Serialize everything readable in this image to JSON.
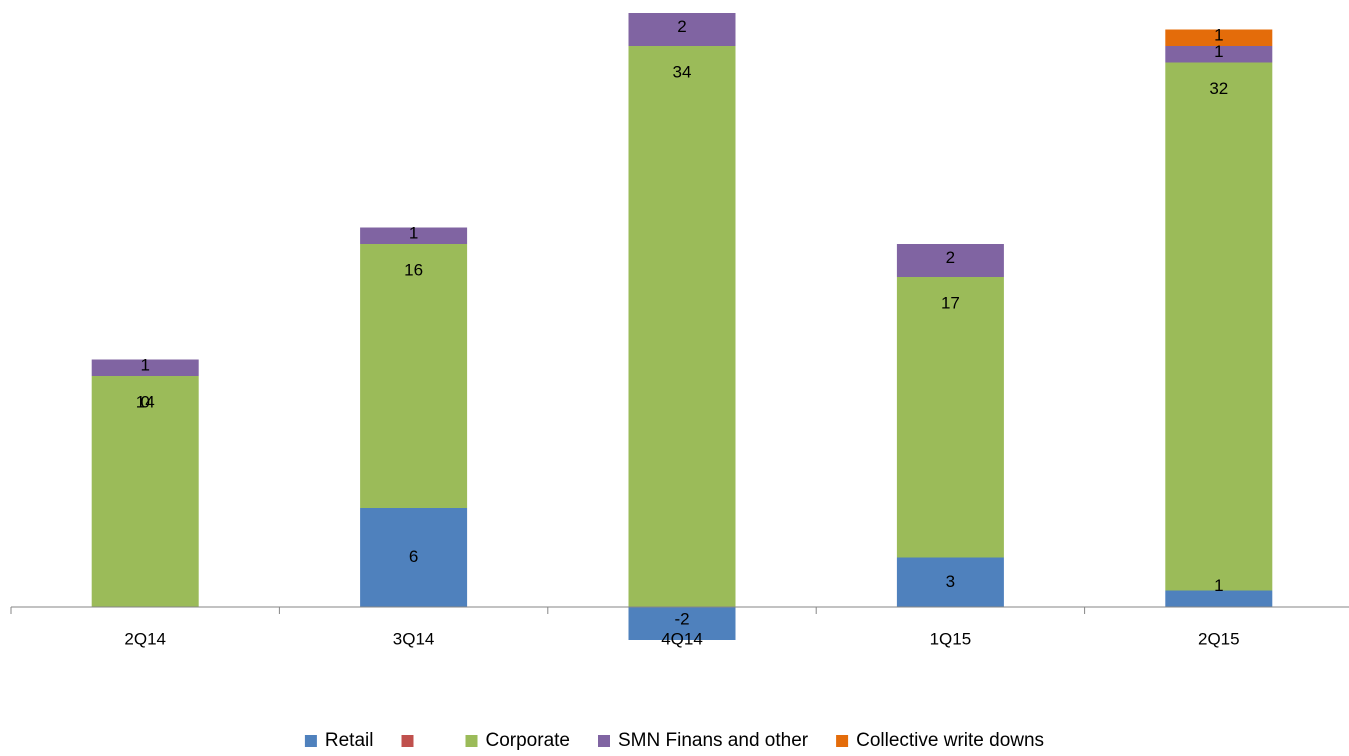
{
  "chart_data": {
    "type": "bar",
    "stacked": true,
    "categories": [
      "2Q14",
      "3Q14",
      "4Q14",
      "1Q15",
      "2Q15"
    ],
    "series": [
      {
        "name": "Retail",
        "color": "#4f81bd",
        "values": [
          0,
          6,
          -2,
          3,
          1
        ]
      },
      {
        "name": "",
        "color": "#c0504d",
        "values": [
          0,
          0,
          0,
          0,
          0
        ]
      },
      {
        "name": "Corporate",
        "color": "#9bbb59",
        "values": [
          14,
          16,
          34,
          17,
          32
        ]
      },
      {
        "name": "SMN Finans and other",
        "color": "#8064a2",
        "values": [
          1,
          1,
          2,
          2,
          1
        ]
      },
      {
        "name": "Collective write downs",
        "color": "#e46c0a",
        "values": [
          0,
          0,
          0,
          0,
          1
        ]
      }
    ],
    "bar_labels": [
      [
        {
          "series": 2,
          "text": "0"
        },
        {
          "series": 2,
          "text": "14"
        },
        {
          "series": 3,
          "text": "1"
        }
      ],
      [
        {
          "series": 0,
          "text": "6"
        },
        {
          "series": 2,
          "text": "16"
        },
        {
          "series": 3,
          "text": "1"
        }
      ],
      [
        {
          "series": 0,
          "text": "-2"
        },
        {
          "series": 2,
          "text": "34"
        },
        {
          "series": 3,
          "text": "2"
        }
      ],
      [
        {
          "series": 0,
          "text": "3"
        },
        {
          "series": 2,
          "text": "17"
        },
        {
          "series": 3,
          "text": "2"
        }
      ],
      [
        {
          "series": 0,
          "text": "1"
        },
        {
          "series": 2,
          "text": "32"
        },
        {
          "series": 3,
          "text": "1"
        },
        {
          "series": 4,
          "text": "1"
        }
      ]
    ],
    "ylim": [
      -2,
      36
    ],
    "grid": false,
    "legend_position": "bottom",
    "title": "",
    "xlabel": "",
    "ylabel": ""
  }
}
